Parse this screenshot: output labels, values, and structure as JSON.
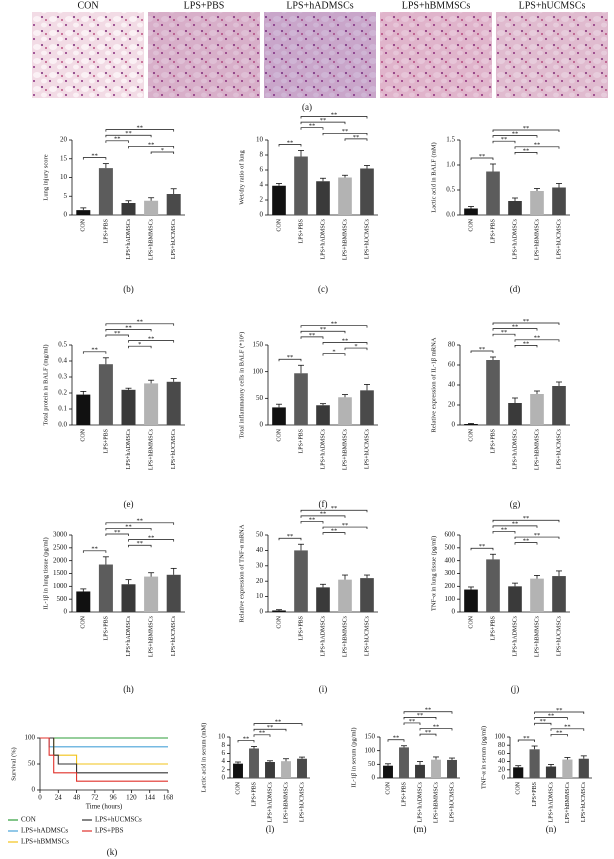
{
  "figure_a": {
    "labels": [
      "CON",
      "LPS+PBS",
      "LPS+hADMSCs",
      "LPS+hBMMSCs",
      "LPS+hUCMSCs"
    ],
    "panel_label": "(a)"
  },
  "chart_data": [
    {
      "type": "bar",
      "panel_label": "(b)",
      "ylabel": "Lung injury score",
      "categories": [
        "CON",
        "LPS+PBS",
        "LPS+hADMSCs",
        "LPS+hBMMSCs",
        "LPS+hUCMSCs"
      ],
      "values": [
        1.3,
        12.5,
        3.2,
        3.8,
        5.6
      ],
      "errors": [
        0.6,
        1.2,
        0.6,
        0.8,
        1.4
      ],
      "colors": [
        "#111111",
        "#5c5c5c",
        "#3a3a3a",
        "#b3b3b3",
        "#4a4a4a"
      ],
      "ylim": [
        0,
        20
      ],
      "yticks": [
        0,
        5,
        10,
        15,
        20
      ],
      "significance": [
        {
          "pair": [
            "CON",
            "LPS+PBS"
          ],
          "label": "**"
        },
        {
          "pair": [
            "LPS+hBMMSCs",
            "LPS+hUCMSCs"
          ],
          "label": "*"
        },
        {
          "pair": [
            "LPS+hADMSCs",
            "LPS+hUCMSCs"
          ],
          "label": "**"
        },
        {
          "pair": [
            "LPS+PBS",
            "LPS+hADMSCs"
          ],
          "label": "**"
        },
        {
          "pair": [
            "LPS+PBS",
            "LPS+hBMMSCs"
          ],
          "label": "**"
        },
        {
          "pair": [
            "LPS+PBS",
            "LPS+hUCMSCs"
          ],
          "label": "**"
        }
      ]
    },
    {
      "type": "bar",
      "panel_label": "(c)",
      "ylabel": "Wet/dry ratio of lung",
      "categories": [
        "CON",
        "LPS+PBS",
        "LPS+hADMSCs",
        "LPS+hBMMSCs",
        "LPS+hUCMSCs"
      ],
      "values": [
        3.9,
        7.8,
        4.5,
        5.0,
        6.2
      ],
      "errors": [
        0.3,
        0.8,
        0.4,
        0.3,
        0.4
      ],
      "colors": [
        "#111111",
        "#5c5c5c",
        "#3a3a3a",
        "#b3b3b3",
        "#4a4a4a"
      ],
      "ylim": [
        0,
        10
      ],
      "yticks": [
        0,
        2,
        4,
        6,
        8,
        10
      ],
      "significance": [
        {
          "pair": [
            "CON",
            "LPS+PBS"
          ],
          "label": "**"
        },
        {
          "pair": [
            "LPS+hBMMSCs",
            "LPS+hUCMSCs"
          ],
          "label": "**"
        },
        {
          "pair": [
            "LPS+hADMSCs",
            "LPS+hUCMSCs"
          ],
          "label": "**"
        },
        {
          "pair": [
            "LPS+PBS",
            "LPS+hADMSCs"
          ],
          "label": "**"
        },
        {
          "pair": [
            "LPS+PBS",
            "LPS+hBMMSCs"
          ],
          "label": "**"
        },
        {
          "pair": [
            "LPS+PBS",
            "LPS+hUCMSCs"
          ],
          "label": "**"
        }
      ]
    },
    {
      "type": "bar",
      "panel_label": "(d)",
      "ylabel": "Lactic acid in BALF (mM)",
      "categories": [
        "CON",
        "LPS+PBS",
        "LPS+hADMSCs",
        "LPS+hBMMSCs",
        "LPS+hUCMSCs"
      ],
      "values": [
        0.13,
        0.87,
        0.28,
        0.48,
        0.55
      ],
      "errors": [
        0.04,
        0.15,
        0.06,
        0.05,
        0.08
      ],
      "colors": [
        "#111111",
        "#5c5c5c",
        "#3a3a3a",
        "#b3b3b3",
        "#4a4a4a"
      ],
      "ylim": [
        0,
        1.5
      ],
      "yticks": [
        {
          "value": 0,
          "label": "0.0"
        },
        0.5,
        {
          "value": 1,
          "label": "1.0"
        },
        1.5
      ],
      "significance": [
        {
          "pair": [
            "CON",
            "LPS+PBS"
          ],
          "label": "**"
        },
        {
          "pair": [
            "LPS+hADMSCs",
            "LPS+hBMMSCs"
          ],
          "label": "**"
        },
        {
          "pair": [
            "LPS+hADMSCs",
            "LPS+hUCMSCs"
          ],
          "label": "**"
        },
        {
          "pair": [
            "LPS+PBS",
            "LPS+hADMSCs"
          ],
          "label": "**"
        },
        {
          "pair": [
            "LPS+PBS",
            "LPS+hBMMSCs"
          ],
          "label": "**"
        },
        {
          "pair": [
            "LPS+PBS",
            "LPS+hUCMSCs"
          ],
          "label": "**"
        }
      ]
    },
    {
      "type": "bar",
      "panel_label": "(e)",
      "ylabel": "Total protein in BALF (mg/ml)",
      "categories": [
        "CON",
        "LPS+PBS",
        "LPS+hADMSCs",
        "LPS+hBMMSCs",
        "LPS+hUCMSCs"
      ],
      "values": [
        0.19,
        0.38,
        0.22,
        0.26,
        0.27
      ],
      "errors": [
        0.02,
        0.04,
        0.01,
        0.02,
        0.02
      ],
      "colors": [
        "#111111",
        "#5c5c5c",
        "#3a3a3a",
        "#b3b3b3",
        "#4a4a4a"
      ],
      "ylim": [
        0,
        0.5
      ],
      "yticks": [
        {
          "value": 0,
          "label": "0.0"
        },
        0.1,
        0.2,
        0.3,
        0.4,
        0.5
      ],
      "significance": [
        {
          "pair": [
            "CON",
            "LPS+PBS"
          ],
          "label": "**"
        },
        {
          "pair": [
            "LPS+hADMSCs",
            "LPS+hBMMSCs"
          ],
          "label": "*"
        },
        {
          "pair": [
            "LPS+hADMSCs",
            "LPS+hUCMSCs"
          ],
          "label": "**"
        },
        {
          "pair": [
            "LPS+PBS",
            "LPS+hADMSCs"
          ],
          "label": "**"
        },
        {
          "pair": [
            "LPS+PBS",
            "LPS+hBMMSCs"
          ],
          "label": "**"
        },
        {
          "pair": [
            "LPS+PBS",
            "LPS+hUCMSCs"
          ],
          "label": "**"
        }
      ]
    },
    {
      "type": "bar",
      "panel_label": "(f)",
      "ylabel": "Total inflammatory cells in BALF (*10⁶)",
      "categories": [
        "CON",
        "LPS+PBS",
        "LPS+hADMSCs",
        "LPS+hBMMSCs",
        "LPS+hUCMSCs"
      ],
      "values": [
        33,
        97,
        37,
        52,
        65
      ],
      "errors": [
        6,
        15,
        3,
        5,
        11
      ],
      "colors": [
        "#111111",
        "#5c5c5c",
        "#3a3a3a",
        "#b3b3b3",
        "#4a4a4a"
      ],
      "ylim": [
        0,
        150
      ],
      "yticks": [
        0,
        50,
        100,
        150
      ],
      "significance": [
        {
          "pair": [
            "CON",
            "LPS+PBS"
          ],
          "label": "**"
        },
        {
          "pair": [
            "LPS+hADMSCs",
            "LPS+hBMMSCs"
          ],
          "label": "*"
        },
        {
          "pair": [
            "LPS+hBMMSCs",
            "LPS+hUCMSCs"
          ],
          "label": "*"
        },
        {
          "pair": [
            "LPS+hADMSCs",
            "LPS+hUCMSCs"
          ],
          "label": "**"
        },
        {
          "pair": [
            "LPS+PBS",
            "LPS+hADMSCs"
          ],
          "label": "**"
        },
        {
          "pair": [
            "LPS+PBS",
            "LPS+hBMMSCs"
          ],
          "label": "**"
        },
        {
          "pair": [
            "LPS+PBS",
            "LPS+hUCMSCs"
          ],
          "label": "**"
        }
      ]
    },
    {
      "type": "bar",
      "panel_label": "(g)",
      "ylabel": "Relative expression of IL-1β mRNA",
      "categories": [
        "CON",
        "LPS+PBS",
        "LPS+hADMSCs",
        "LPS+hBMMSCs",
        "LPS+hUCMSCs"
      ],
      "values": [
        1,
        65,
        22,
        31,
        39
      ],
      "errors": [
        0.5,
        3,
        5,
        3,
        4
      ],
      "colors": [
        "#111111",
        "#5c5c5c",
        "#3a3a3a",
        "#b3b3b3",
        "#4a4a4a"
      ],
      "ylim": [
        0,
        80
      ],
      "yticks": [
        0,
        20,
        40,
        60,
        80
      ],
      "significance": [
        {
          "pair": [
            "CON",
            "LPS+PBS"
          ],
          "label": "**"
        },
        {
          "pair": [
            "LPS+hADMSCs",
            "LPS+hBMMSCs"
          ],
          "label": "**"
        },
        {
          "pair": [
            "LPS+hADMSCs",
            "LPS+hUCMSCs"
          ],
          "label": "**"
        },
        {
          "pair": [
            "LPS+PBS",
            "LPS+hADMSCs"
          ],
          "label": "**"
        },
        {
          "pair": [
            "LPS+PBS",
            "LPS+hBMMSCs"
          ],
          "label": "**"
        },
        {
          "pair": [
            "LPS+PBS",
            "LPS+hUCMSCs"
          ],
          "label": "**"
        }
      ]
    },
    {
      "type": "bar",
      "panel_label": "(h)",
      "ylabel": "IL-1β in lung tissue (pg/ml)",
      "categories": [
        "CON",
        "LPS+PBS",
        "LPS+hADMSCs",
        "LPS+hBMMSCs",
        "LPS+hUCMSCs"
      ],
      "values": [
        800,
        1850,
        1080,
        1380,
        1450
      ],
      "errors": [
        100,
        300,
        180,
        150,
        250
      ],
      "colors": [
        "#111111",
        "#5c5c5c",
        "#3a3a3a",
        "#b3b3b3",
        "#4a4a4a"
      ],
      "ylim": [
        0,
        3000
      ],
      "yticks": [
        0,
        500,
        1000,
        1500,
        2000,
        2500,
        3000
      ],
      "significance": [
        {
          "pair": [
            "CON",
            "LPS+PBS"
          ],
          "label": "**"
        },
        {
          "pair": [
            "LPS+hADMSCs",
            "LPS+hBMMSCs"
          ],
          "label": "**"
        },
        {
          "pair": [
            "LPS+hADMSCs",
            "LPS+hUCMSCs"
          ],
          "label": "**"
        },
        {
          "pair": [
            "LPS+PBS",
            "LPS+hADMSCs"
          ],
          "label": "**"
        },
        {
          "pair": [
            "LPS+PBS",
            "LPS+hBMMSCs"
          ],
          "label": "**"
        },
        {
          "pair": [
            "LPS+PBS",
            "LPS+hUCMSCs"
          ],
          "label": "**"
        }
      ]
    },
    {
      "type": "bar",
      "panel_label": "(i)",
      "ylabel": "Relative expression of TNF-α mRNA",
      "categories": [
        "CON",
        "LPS+PBS",
        "LPS+hADMSCs",
        "LPS+hBMMSCs",
        "LPS+hUCMSCs"
      ],
      "values": [
        1,
        40,
        16,
        21,
        22
      ],
      "errors": [
        0.5,
        4,
        2,
        3,
        2
      ],
      "colors": [
        "#111111",
        "#5c5c5c",
        "#3a3a3a",
        "#b3b3b3",
        "#4a4a4a"
      ],
      "ylim": [
        0,
        50
      ],
      "yticks": [
        0,
        10,
        20,
        30,
        40,
        50
      ],
      "significance": [
        {
          "pair": [
            "CON",
            "LPS+PBS"
          ],
          "label": "**"
        },
        {
          "pair": [
            "LPS+hADMSCs",
            "LPS+hBMMSCs"
          ],
          "label": "**"
        },
        {
          "pair": [
            "LPS+hADMSCs",
            "LPS+hUCMSCs"
          ],
          "label": "**"
        },
        {
          "pair": [
            "LPS+PBS",
            "LPS+hADMSCs"
          ],
          "label": "**"
        },
        {
          "pair": [
            "LPS+PBS",
            "LPS+hBMMSCs"
          ],
          "label": "**"
        },
        {
          "pair": [
            "LPS+PBS",
            "LPS+hUCMSCs"
          ],
          "label": "**"
        }
      ]
    },
    {
      "type": "bar",
      "panel_label": "(j)",
      "ylabel": "TNF-α in lung tissue (pg/ml)",
      "categories": [
        "CON",
        "LPS+PBS",
        "LPS+hADMSCs",
        "LPS+hBMMSCs",
        "LPS+hUCMSCs"
      ],
      "values": [
        175,
        410,
        200,
        260,
        280
      ],
      "errors": [
        20,
        40,
        25,
        25,
        40
      ],
      "colors": [
        "#111111",
        "#5c5c5c",
        "#3a3a3a",
        "#b3b3b3",
        "#4a4a4a"
      ],
      "ylim": [
        0,
        600
      ],
      "yticks": [
        0,
        100,
        200,
        300,
        400,
        500,
        600
      ],
      "significance": [
        {
          "pair": [
            "CON",
            "LPS+PBS"
          ],
          "label": "**"
        },
        {
          "pair": [
            "LPS+hADMSCs",
            "LPS+hBMMSCs"
          ],
          "label": "**"
        },
        {
          "pair": [
            "LPS+hADMSCs",
            "LPS+hUCMSCs"
          ],
          "label": "**"
        },
        {
          "pair": [
            "LPS+PBS",
            "LPS+hADMSCs"
          ],
          "label": "**"
        },
        {
          "pair": [
            "LPS+PBS",
            "LPS+hBMMSCs"
          ],
          "label": "**"
        },
        {
          "pair": [
            "LPS+PBS",
            "LPS+hUCMSCs"
          ],
          "label": "**"
        }
      ]
    },
    {
      "type": "line",
      "panel_label": "(k)",
      "ylabel": "Survival (%)",
      "xlabel": "Time (hours)",
      "xlim": [
        0,
        168
      ],
      "xticks": [
        0,
        24,
        48,
        72,
        96,
        120,
        144,
        168
      ],
      "ylim": [
        0,
        100
      ],
      "yticks": [
        0,
        50,
        100
      ],
      "series": [
        {
          "name": "CON",
          "color": "#2e9e3a",
          "x": [
            0,
            168
          ],
          "values": [
            100,
            100
          ]
        },
        {
          "name": "LPS+hADMSCs",
          "color": "#4aa3d8",
          "x": [
            0,
            12,
            12,
            168
          ],
          "values": [
            100,
            100,
            83,
            83
          ]
        },
        {
          "name": "LPS+hBMMSCs",
          "color": "#f2c31a",
          "x": [
            0,
            18,
            18,
            48,
            48,
            168
          ],
          "values": [
            100,
            100,
            67,
            67,
            50,
            50
          ]
        },
        {
          "name": "LPS+hUCMSCs",
          "color": "#333333",
          "x": [
            0,
            18,
            18,
            24,
            24,
            48,
            48,
            168
          ],
          "values": [
            100,
            100,
            67,
            67,
            50,
            50,
            33,
            33
          ]
        },
        {
          "name": "LPS+PBS",
          "color": "#e0302a",
          "x": [
            0,
            12,
            12,
            18,
            18,
            48,
            48,
            168
          ],
          "values": [
            100,
            100,
            67,
            67,
            33,
            33,
            17,
            17
          ]
        }
      ]
    },
    {
      "type": "bar",
      "panel_label": "(l)",
      "ylabel": "Lactic acid in serum (mM)",
      "categories": [
        "CON",
        "LPS+PBS",
        "LPS+hADMSCs",
        "LPS+hBMMSCs",
        "LPS+hUCMSCs"
      ],
      "values": [
        3.5,
        7.2,
        3.9,
        4.1,
        4.7
      ],
      "errors": [
        0.4,
        0.5,
        0.3,
        0.6,
        0.4
      ],
      "colors": [
        "#111111",
        "#5c5c5c",
        "#3a3a3a",
        "#b3b3b3",
        "#4a4a4a"
      ],
      "ylim": [
        0,
        10
      ],
      "yticks": [
        0,
        2,
        4,
        6,
        8,
        10
      ],
      "significance": [
        {
          "pair": [
            "CON",
            "LPS+PBS"
          ],
          "label": "**"
        },
        {
          "pair": [
            "LPS+PBS",
            "LPS+hADMSCs"
          ],
          "label": "**"
        },
        {
          "pair": [
            "LPS+PBS",
            "LPS+hBMMSCs"
          ],
          "label": "**"
        },
        {
          "pair": [
            "LPS+PBS",
            "LPS+hUCMSCs"
          ],
          "label": "**"
        }
      ]
    },
    {
      "type": "bar",
      "panel_label": "(m)",
      "ylabel": "IL-1β in serum (pg/ml)",
      "categories": [
        "CON",
        "LPS+PBS",
        "LPS+hADMSCs",
        "LPS+hBMMSCs",
        "LPS+hUCMSCs"
      ],
      "values": [
        45,
        112,
        48,
        67,
        66
      ],
      "errors": [
        7,
        6,
        12,
        10,
        7
      ],
      "colors": [
        "#111111",
        "#5c5c5c",
        "#3a3a3a",
        "#b3b3b3",
        "#4a4a4a"
      ],
      "ylim": [
        0,
        150
      ],
      "yticks": [
        0,
        50,
        100,
        150
      ],
      "significance": [
        {
          "pair": [
            "CON",
            "LPS+PBS"
          ],
          "label": "**"
        },
        {
          "pair": [
            "LPS+hADMSCs",
            "LPS+hBMMSCs"
          ],
          "label": "**"
        },
        {
          "pair": [
            "LPS+hADMSCs",
            "LPS+hUCMSCs"
          ],
          "label": "**"
        },
        {
          "pair": [
            "LPS+PBS",
            "LPS+hADMSCs"
          ],
          "label": "**"
        },
        {
          "pair": [
            "LPS+PBS",
            "LPS+hBMMSCs"
          ],
          "label": "**"
        },
        {
          "pair": [
            "LPS+PBS",
            "LPS+hUCMSCs"
          ],
          "label": "**"
        }
      ]
    },
    {
      "type": "bar",
      "panel_label": "(n)",
      "ylabel": "TNF-α in serum (pg/ml)",
      "categories": [
        "CON",
        "LPS+PBS",
        "LPS+hADMSCs",
        "LPS+hBMMSCs",
        "LPS+hUCMSCs"
      ],
      "values": [
        26,
        70,
        28,
        45,
        47
      ],
      "errors": [
        4,
        8,
        5,
        5,
        7
      ],
      "colors": [
        "#111111",
        "#5c5c5c",
        "#3a3a3a",
        "#b3b3b3",
        "#4a4a4a"
      ],
      "ylim": [
        0,
        100
      ],
      "yticks": [
        0,
        20,
        40,
        60,
        80,
        100
      ],
      "significance": [
        {
          "pair": [
            "CON",
            "LPS+PBS"
          ],
          "label": "**"
        },
        {
          "pair": [
            "LPS+hADMSCs",
            "LPS+hBMMSCs"
          ],
          "label": "**"
        },
        {
          "pair": [
            "LPS+hADMSCs",
            "LPS+hUCMSCs"
          ],
          "label": "**"
        },
        {
          "pair": [
            "LPS+PBS",
            "LPS+hADMSCs"
          ],
          "label": "**"
        },
        {
          "pair": [
            "LPS+PBS",
            "LPS+hBMMSCs"
          ],
          "label": "**"
        },
        {
          "pair": [
            "LPS+PBS",
            "LPS+hUCMSCs"
          ],
          "label": "**"
        }
      ]
    }
  ]
}
